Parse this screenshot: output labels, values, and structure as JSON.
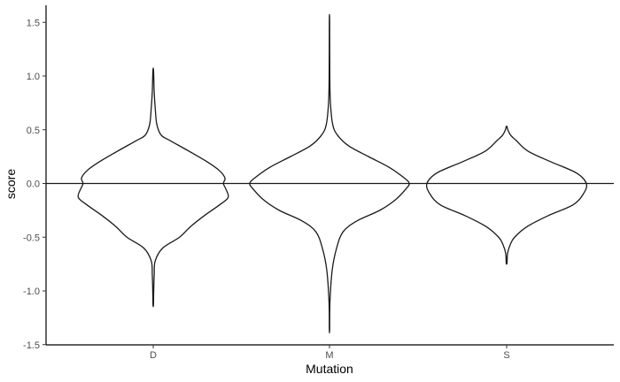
{
  "chart_data": {
    "type": "violin",
    "title": "",
    "xlabel": "Mutation",
    "ylabel": "score",
    "ylim": [
      -1.5,
      1.5
    ],
    "yticks": [
      "-1.5",
      "-1.0",
      "-0.5",
      "0.0",
      "0.5",
      "1.0",
      "1.5"
    ],
    "categories": [
      "D",
      "M",
      "S"
    ],
    "reference_line_y": 0,
    "grid": false,
    "legend": "none",
    "line_color": "#1a1a1a",
    "violins": [
      {
        "category": "D",
        "range": [
          -1.13,
          1.05
        ],
        "profile": [
          [
            -1.13,
            0.003
          ],
          [
            -1.0,
            0.006
          ],
          [
            -0.85,
            0.012
          ],
          [
            -0.72,
            0.025
          ],
          [
            -0.6,
            0.12
          ],
          [
            -0.5,
            0.33
          ],
          [
            -0.4,
            0.47
          ],
          [
            -0.3,
            0.64
          ],
          [
            -0.2,
            0.83
          ],
          [
            -0.13,
            0.94
          ],
          [
            -0.05,
            0.91
          ],
          [
            0.0,
            0.88
          ],
          [
            0.05,
            0.9
          ],
          [
            0.12,
            0.83
          ],
          [
            0.2,
            0.68
          ],
          [
            0.3,
            0.45
          ],
          [
            0.4,
            0.21
          ],
          [
            0.45,
            0.1
          ],
          [
            0.55,
            0.045
          ],
          [
            0.7,
            0.025
          ],
          [
            0.85,
            0.012
          ],
          [
            1.05,
            0.004
          ]
        ]
      },
      {
        "category": "M",
        "range": [
          -1.36,
          1.51
        ],
        "profile": [
          [
            -1.36,
            0.002
          ],
          [
            -1.1,
            0.006
          ],
          [
            -0.8,
            0.035
          ],
          [
            -0.6,
            0.09
          ],
          [
            -0.45,
            0.17
          ],
          [
            -0.35,
            0.34
          ],
          [
            -0.25,
            0.63
          ],
          [
            -0.15,
            0.83
          ],
          [
            -0.05,
            0.96
          ],
          [
            0.0,
            1.0
          ],
          [
            0.05,
            0.94
          ],
          [
            0.15,
            0.75
          ],
          [
            0.25,
            0.49
          ],
          [
            0.35,
            0.24
          ],
          [
            0.45,
            0.1
          ],
          [
            0.55,
            0.04
          ],
          [
            0.75,
            0.012
          ],
          [
            1.0,
            0.004
          ],
          [
            1.51,
            0.002
          ]
        ]
      },
      {
        "category": "S",
        "range": [
          -0.74,
          0.53
        ],
        "profile": [
          [
            -0.74,
            0.005
          ],
          [
            -0.65,
            0.012
          ],
          [
            -0.57,
            0.045
          ],
          [
            -0.5,
            0.1
          ],
          [
            -0.4,
            0.26
          ],
          [
            -0.3,
            0.52
          ],
          [
            -0.2,
            0.83
          ],
          [
            -0.1,
            0.96
          ],
          [
            0.0,
            1.0
          ],
          [
            0.1,
            0.87
          ],
          [
            0.2,
            0.56
          ],
          [
            0.3,
            0.27
          ],
          [
            0.4,
            0.12
          ],
          [
            0.45,
            0.05
          ],
          [
            0.5,
            0.015
          ],
          [
            0.53,
            0.005
          ]
        ]
      }
    ]
  }
}
